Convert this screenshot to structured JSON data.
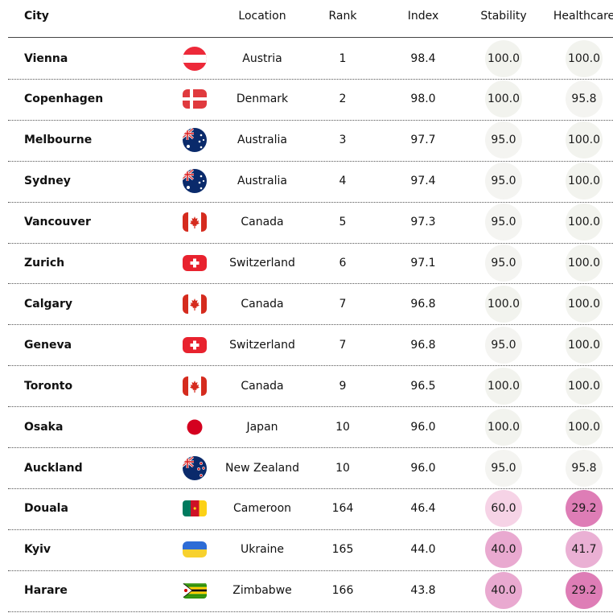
{
  "chart_data": {
    "type": "table",
    "columns": [
      "City",
      "",
      "Location",
      "Rank",
      "Index",
      "Stability",
      "Healthcare"
    ],
    "rows": [
      {
        "city": "Vienna",
        "flag": "austria-flag-icon",
        "location": "Austria",
        "rank": "1",
        "index": "98.4",
        "stability": "100.0",
        "healthcare": "100.0"
      },
      {
        "city": "Copenhagen",
        "flag": "denmark-flag-icon",
        "location": "Denmark",
        "rank": "2",
        "index": "98.0",
        "stability": "100.0",
        "healthcare": "95.8"
      },
      {
        "city": "Melbourne",
        "flag": "australia-flag-icon",
        "location": "Australia",
        "rank": "3",
        "index": "97.7",
        "stability": "95.0",
        "healthcare": "100.0"
      },
      {
        "city": "Sydney",
        "flag": "australia-flag-icon",
        "location": "Australia",
        "rank": "4",
        "index": "97.4",
        "stability": "95.0",
        "healthcare": "100.0"
      },
      {
        "city": "Vancouver",
        "flag": "canada-flag-icon",
        "location": "Canada",
        "rank": "5",
        "index": "97.3",
        "stability": "95.0",
        "healthcare": "100.0"
      },
      {
        "city": "Zurich",
        "flag": "switzerland-flag-icon",
        "location": "Switzerland",
        "rank": "6",
        "index": "97.1",
        "stability": "95.0",
        "healthcare": "100.0"
      },
      {
        "city": "Calgary",
        "flag": "canada-flag-icon",
        "location": "Canada",
        "rank": "7",
        "index": "96.8",
        "stability": "100.0",
        "healthcare": "100.0"
      },
      {
        "city": "Geneva",
        "flag": "switzerland-flag-icon",
        "location": "Switzerland",
        "rank": "7",
        "index": "96.8",
        "stability": "95.0",
        "healthcare": "100.0"
      },
      {
        "city": "Toronto",
        "flag": "canada-flag-icon",
        "location": "Canada",
        "rank": "9",
        "index": "96.5",
        "stability": "100.0",
        "healthcare": "100.0"
      },
      {
        "city": "Osaka",
        "flag": "japan-flag-icon",
        "location": "Japan",
        "rank": "10",
        "index": "96.0",
        "stability": "100.0",
        "healthcare": "100.0"
      },
      {
        "city": "Auckland",
        "flag": "new-zealand-flag-icon",
        "location": "New Zealand",
        "rank": "10",
        "index": "96.0",
        "stability": "95.0",
        "healthcare": "95.8"
      },
      {
        "city": "Douala",
        "flag": "cameroon-flag-icon",
        "location": "Cameroon",
        "rank": "164",
        "index": "46.4",
        "stability": "60.0",
        "healthcare": "29.2"
      },
      {
        "city": "Kyiv",
        "flag": "ukraine-flag-icon",
        "location": "Ukraine",
        "rank": "165",
        "index": "44.0",
        "stability": "40.0",
        "healthcare": "41.7"
      },
      {
        "city": "Harare",
        "flag": "zimbabwe-flag-icon",
        "location": "Zimbabwe",
        "rank": "166",
        "index": "43.8",
        "stability": "40.0",
        "healthcare": "29.2"
      }
    ],
    "colors": {
      "score_100": "#f2f3ee",
      "score_95": "#f4f4f1",
      "score_95_8": "#f4f4f1",
      "score_60": "#f6d3e6",
      "score_41_7": "#eab0d4",
      "score_40": "#e9a9d0",
      "score_29_2": "#de7db6",
      "separator": "#555555",
      "header_rule": "#444444"
    }
  }
}
